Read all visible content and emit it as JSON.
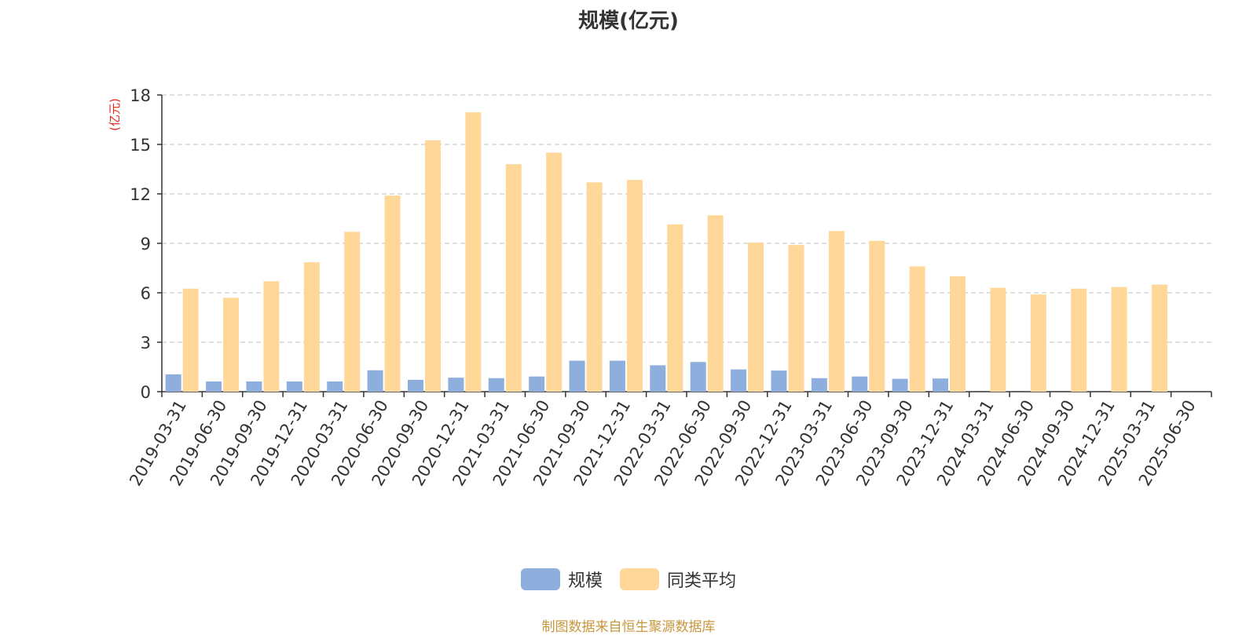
{
  "chart_data": {
    "type": "bar",
    "title": "规模(亿元)",
    "ylabel": "(亿元)",
    "xlabel": "",
    "ylim": [
      0,
      18
    ],
    "yticks": [
      0,
      3,
      6,
      9,
      12,
      15,
      18
    ],
    "grid": true,
    "legend_position": "bottom",
    "categories": [
      "2019-03-31",
      "2019-06-30",
      "2019-09-30",
      "2019-12-31",
      "2020-03-31",
      "2020-06-30",
      "2020-09-30",
      "2020-12-31",
      "2021-03-31",
      "2021-06-30",
      "2021-09-30",
      "2021-12-31",
      "2022-03-31",
      "2022-06-30",
      "2022-09-30",
      "2022-12-31",
      "2023-03-31",
      "2023-06-30",
      "2023-09-30",
      "2023-12-31",
      "2024-03-31",
      "2024-06-30",
      "2024-09-30",
      "2024-12-31",
      "2025-03-31",
      "2025-06-30"
    ],
    "series": [
      {
        "name": "规模",
        "color": "#8eaedd",
        "values": [
          1.05,
          0.62,
          0.62,
          0.62,
          0.62,
          1.3,
          0.72,
          0.85,
          0.82,
          0.92,
          1.88,
          1.88,
          1.6,
          1.8,
          1.35,
          1.28,
          0.82,
          0.92,
          0.78,
          0.8,
          null,
          null,
          null,
          null,
          null,
          null
        ]
      },
      {
        "name": "同类平均",
        "color": "#ffd899",
        "values": [
          6.25,
          5.7,
          6.7,
          7.85,
          9.7,
          11.9,
          15.25,
          16.95,
          13.8,
          14.5,
          12.7,
          12.85,
          10.15,
          10.7,
          9.05,
          8.9,
          9.75,
          9.15,
          7.6,
          7.0,
          6.3,
          5.9,
          6.25,
          6.35,
          6.5,
          null
        ]
      }
    ]
  },
  "source_note": "制图数据来自恒生聚源数据库"
}
